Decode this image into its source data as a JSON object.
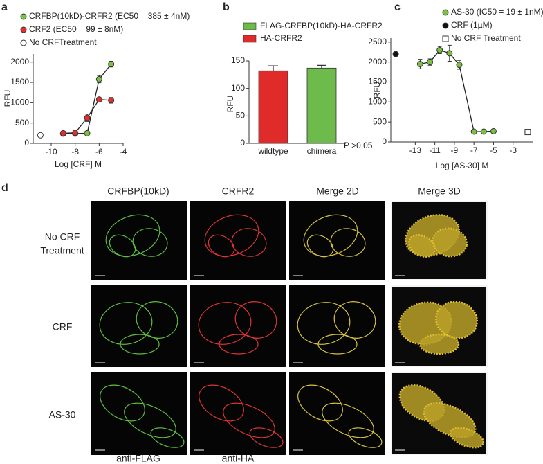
{
  "figure": {
    "panel_labels": [
      "a",
      "b",
      "c",
      "d"
    ],
    "panel_d": {
      "columns": [
        "CRFBP(10kD)",
        "CRFR2",
        "Merge 2D",
        "Merge 3D"
      ],
      "rows": [
        [
          "No CRF",
          "Treatment"
        ],
        [
          "CRF"
        ],
        [
          "AS-30"
        ]
      ],
      "stains": [
        "anti-FLAG",
        "anti-HA"
      ]
    }
  },
  "chart_data": [
    {
      "type": "line",
      "ylabel": "RFU",
      "xlabel": "Log [CRF] M",
      "xlim": [
        -11.5,
        -4
      ],
      "xticks": [
        -10,
        -8,
        -6,
        -4
      ],
      "ylim": [
        0,
        2200
      ],
      "yticks": [
        0,
        500,
        1000,
        1500,
        2000
      ],
      "series": [
        {
          "name": "CRFBP(10kD)-CRFR2 (EC50 = 385 ± 4nM)",
          "color": "#7ac143",
          "x": [
            -9,
            -8,
            -7,
            -6,
            -5
          ],
          "values": [
            240,
            240,
            250,
            1580,
            1950
          ],
          "errors": [
            20,
            20,
            20,
            90,
            70
          ]
        },
        {
          "name": "CRF2 (EC50 = 99 ± 8nM)",
          "color": "#e2302f",
          "x": [
            -9,
            -8,
            -7,
            -6,
            -5
          ],
          "values": [
            250,
            260,
            630,
            1080,
            1060
          ],
          "errors": [
            20,
            20,
            90,
            30,
            70
          ]
        },
        {
          "name": "No CRFTreatment",
          "color": "#ffffff",
          "x": [
            -10.9
          ],
          "values": [
            200
          ],
          "line": false
        }
      ]
    },
    {
      "type": "bar",
      "ylabel": "RFU",
      "annotation": "P >0.05",
      "categories": [
        "wildtype",
        "chimera"
      ],
      "ylim": [
        0,
        150
      ],
      "yticks": [
        0,
        50,
        100,
        150
      ],
      "series": [
        {
          "name": "FLAG-CRFBP(10kD)-HA-CRFR2",
          "color": "#6dbb4a",
          "values": [
            null,
            137
          ],
          "errors": [
            null,
            5
          ]
        },
        {
          "name": "HA-CRFR2",
          "color": "#e02b2b",
          "values": [
            132,
            null
          ],
          "errors": [
            9,
            null
          ]
        }
      ]
    },
    {
      "type": "line",
      "ylabel": "RFU",
      "xlabel": "Log [AS-30] M",
      "xlim": [
        -15.5,
        -1
      ],
      "xticks": [
        -13,
        -11,
        -9,
        -7,
        -5,
        -3
      ],
      "ylim": [
        0,
        2600
      ],
      "yticks": [
        0,
        500,
        1000,
        1500,
        2000,
        2500
      ],
      "series": [
        {
          "name": "AS-30 (IC50 = 19 ± 1nM)",
          "color": "#7ac143",
          "x": [
            -12.5,
            -11.5,
            -10.5,
            -9.5,
            -8.5,
            -7,
            -6,
            -5
          ],
          "values": [
            1950,
            2000,
            2300,
            2220,
            1930,
            260,
            260,
            270
          ],
          "errors": [
            120,
            80,
            90,
            200,
            110,
            20,
            20,
            20
          ]
        },
        {
          "name": "CRF (1µM)",
          "color": "#111111",
          "x": [
            -15
          ],
          "values": [
            2200
          ],
          "line": false
        },
        {
          "name": "No CRF Treatment",
          "color": "#ffffff",
          "x": [
            -1.5
          ],
          "values": [
            250
          ],
          "line": false,
          "marker": "square"
        }
      ]
    }
  ]
}
